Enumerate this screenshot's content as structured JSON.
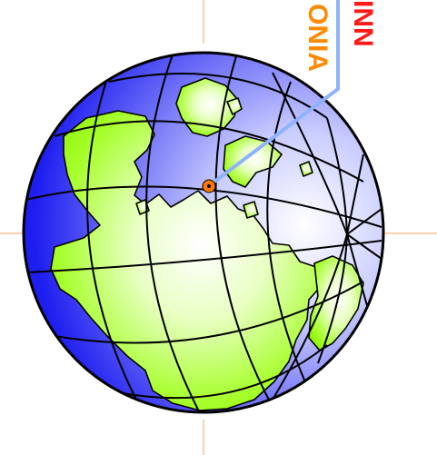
{
  "labels": {
    "orange_text": "ONIA",
    "red_text": "INN"
  },
  "colors": {
    "ocean": "#1e1ef0",
    "ocean_light": "#ffffff",
    "land": "#99ff00",
    "land_light": "#ffffff",
    "grid": "#000000",
    "crosshair": "#f6b37c",
    "leader_line": "#8fb2ff",
    "marker": "#ff7a00",
    "orange_label": "#ff8a00",
    "red_label": "#ff1a1a"
  },
  "icons": {
    "globe": "globe-icon",
    "marker": "location-marker-icon"
  }
}
